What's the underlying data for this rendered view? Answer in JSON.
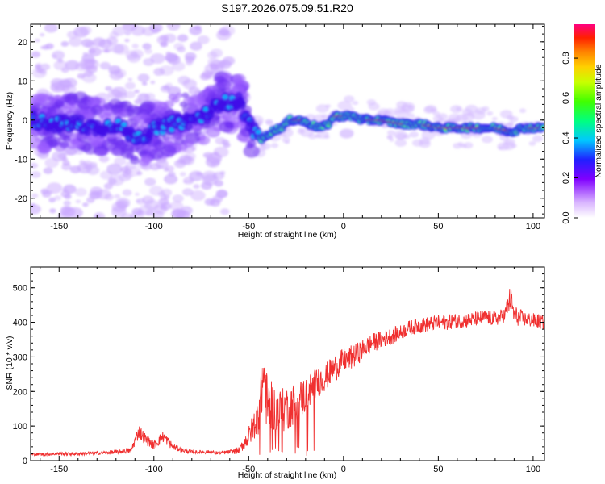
{
  "title": "S197.2026.075.09.51.R20",
  "chart_data": [
    {
      "type": "heatmap",
      "xlabel": "Height of straight line (km)",
      "ylabel": "Frequency (Hz)",
      "xlim": [
        -165,
        106
      ],
      "ylim": [
        -25,
        24.5
      ],
      "xticks": [
        -150,
        -100,
        -50,
        0,
        50,
        100
      ],
      "yticks": [
        -20,
        -10,
        0,
        10,
        20
      ],
      "colorbar": {
        "label": "Normalized spectral amplitude",
        "range": [
          0,
          0.97
        ],
        "ticks": [
          0.0,
          0.2,
          0.4,
          0.6,
          0.8
        ],
        "tick_labels": [
          "0.0",
          "0.2",
          "0.4",
          "0.6",
          "0.8"
        ]
      },
      "ridge": [
        [
          -165,
          0
        ],
        [
          -150,
          -1
        ],
        [
          -140,
          -1
        ],
        [
          -130,
          -2
        ],
        [
          -120,
          -1
        ],
        [
          -112,
          -4
        ],
        [
          -105,
          -4
        ],
        [
          -98,
          -2
        ],
        [
          -90,
          -1
        ],
        [
          -80,
          0
        ],
        [
          -70,
          2
        ],
        [
          -65,
          5
        ],
        [
          -60,
          4
        ],
        [
          -55,
          5
        ],
        [
          -52,
          1
        ],
        [
          -47,
          -3
        ],
        [
          -43,
          -5
        ],
        [
          -38,
          -3
        ],
        [
          -33,
          -2
        ],
        [
          -28,
          0
        ],
        [
          -23,
          0
        ],
        [
          -18,
          -1
        ],
        [
          -12,
          -2
        ],
        [
          -8,
          -1
        ],
        [
          -5,
          1
        ],
        [
          0,
          1
        ],
        [
          5,
          1
        ],
        [
          10,
          0
        ],
        [
          20,
          0
        ],
        [
          30,
          -1
        ],
        [
          40,
          -1
        ],
        [
          50,
          -2
        ],
        [
          60,
          -2
        ],
        [
          70,
          -2
        ],
        [
          80,
          -2
        ],
        [
          88,
          -3
        ],
        [
          95,
          -2
        ],
        [
          106,
          -2
        ]
      ],
      "peak_amplitude_segments": [
        [
          -26,
          -22
        ],
        [
          -5,
          0
        ],
        [
          12,
          32
        ],
        [
          42,
          72
        ],
        [
          80,
          88
        ],
        [
          98,
          104
        ]
      ]
    },
    {
      "type": "line",
      "xlabel": "Height of straight line (km)",
      "ylabel": "SNR (10 * v/v)",
      "xlim": [
        -165,
        106
      ],
      "ylim": [
        0,
        560
      ],
      "xticks": [
        -150,
        -100,
        -50,
        0,
        50,
        100
      ],
      "yticks": [
        0,
        100,
        200,
        300,
        400,
        500
      ],
      "line_color": "#f03030",
      "series": [
        {
          "name": "SNR",
          "x": [
            -165,
            -150,
            -140,
            -130,
            -120,
            -112,
            -108,
            -104,
            -100,
            -95,
            -90,
            -85,
            -80,
            -75,
            -70,
            -65,
            -60,
            -55,
            -50,
            -45,
            -42,
            -40,
            -38,
            -35,
            -30,
            -25,
            -20,
            -15,
            -10,
            -5,
            0,
            5,
            10,
            15,
            20,
            25,
            30,
            35,
            40,
            45,
            50,
            55,
            60,
            65,
            70,
            75,
            80,
            85,
            88,
            90,
            95,
            100,
            106
          ],
          "values": [
            18,
            20,
            20,
            22,
            25,
            30,
            85,
            60,
            45,
            70,
            40,
            30,
            25,
            25,
            25,
            22,
            25,
            30,
            70,
            130,
            250,
            150,
            160,
            140,
            150,
            170,
            190,
            220,
            240,
            265,
            290,
            300,
            320,
            340,
            350,
            360,
            370,
            385,
            390,
            395,
            400,
            400,
            405,
            405,
            410,
            415,
            410,
            420,
            470,
            420,
            410,
            405,
            400
          ],
          "noise_amplitude": [
            5,
            5,
            5,
            5,
            6,
            8,
            22,
            16,
            12,
            18,
            10,
            6,
            5,
            5,
            5,
            5,
            6,
            10,
            30,
            55,
            100,
            80,
            70,
            65,
            65,
            60,
            55,
            45,
            40,
            40,
            35,
            35,
            30,
            28,
            25,
            25,
            22,
            22,
            22,
            22,
            22,
            22,
            22,
            22,
            22,
            22,
            22,
            22,
            40,
            30,
            22,
            22,
            22
          ]
        }
      ]
    }
  ]
}
